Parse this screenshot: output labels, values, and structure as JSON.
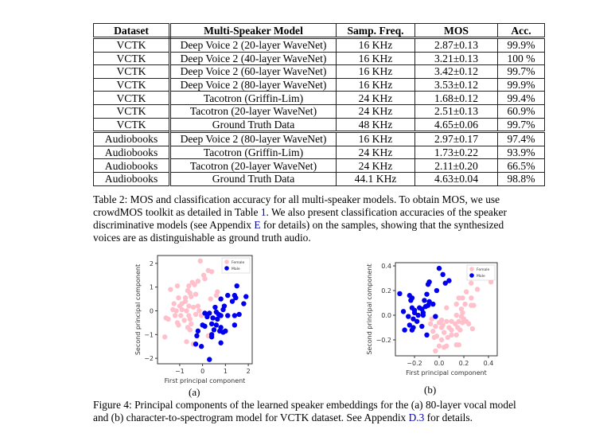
{
  "table": {
    "headers": [
      "Dataset",
      "Multi-Speaker Model",
      "Samp. Freq.",
      "MOS",
      "Acc."
    ],
    "rows": [
      [
        "VCTK",
        "Deep Voice 2 (20-layer WaveNet)",
        "16 KHz",
        "2.87±0.13",
        "99.9%"
      ],
      [
        "VCTK",
        "Deep Voice 2 (40-layer WaveNet)",
        "16 KHz",
        "3.21±0.13",
        "100 %"
      ],
      [
        "VCTK",
        "Deep Voice 2 (60-layer WaveNet)",
        "16 KHz",
        "3.42±0.12",
        "99.7%"
      ],
      [
        "VCTK",
        "Deep Voice 2 (80-layer WaveNet)",
        "16 KHz",
        "3.53±0.12",
        "99.9%"
      ],
      [
        "VCTK",
        "Tacotron (Griffin-Lim)",
        "24 KHz",
        "1.68±0.12",
        "99.4%"
      ],
      [
        "VCTK",
        "Tacotron (20-layer WaveNet)",
        "24 KHz",
        "2.51±0.13",
        "60.9%"
      ],
      [
        "VCTK",
        "Ground Truth Data",
        "48 KHz",
        "4.65±0.06",
        "99.7%"
      ],
      [
        "Audiobooks",
        "Deep Voice 2 (80-layer WaveNet)",
        "16 KHz",
        "2.97±0.17",
        "97.4%"
      ],
      [
        "Audiobooks",
        "Tacotron (Griffin-Lim)",
        "24 KHz",
        "1.73±0.22",
        "93.9%"
      ],
      [
        "Audiobooks",
        "Tacotron (20-layer WaveNet)",
        "24 KHz",
        "2.11±0.20",
        "66.5%"
      ],
      [
        "Audiobooks",
        "Ground Truth Data",
        "44.1 KHz",
        "4.63±0.04",
        "98.8%"
      ]
    ]
  },
  "table_caption": {
    "l1": "Table 2: MOS and classification accuracy for all multi-speaker models. To obtain MOS, we use",
    "l2a": "crowdMOS toolkit as detailed in Table ",
    "l2link": "1",
    "l2b": ". We also present classification accuracies of the speaker",
    "l3a": "discriminative models (see Appendix ",
    "l3link": "E",
    "l3b": " for details) on the samples, showing that the synthesized",
    "l4": "voices are as distinguishable as ground truth audio."
  },
  "figure_caption": {
    "l1": "Figure 4: Principal components of the learned speaker embeddings for the (a) 80-layer vocal model",
    "l2a": "and (b) character-to-spectrogram model for VCTK dataset. See Appendix ",
    "l2link": "D.3",
    "l2b": " for details."
  },
  "colors": {
    "female": "#ffc0cb",
    "male": "#0000ee",
    "link": "#0000cc"
  },
  "chart_data": [
    {
      "type": "scatter",
      "sublabel": "(a)",
      "xlabel": "First principal component",
      "ylabel": "Second principal component",
      "xlim": [
        -1.97,
        2.17
      ],
      "ylim": [
        -2.23,
        2.33
      ],
      "xticks": [
        -1,
        0,
        1,
        2
      ],
      "yticks": [
        -2,
        -1,
        0,
        1,
        2
      ],
      "legend_position": "top-right",
      "series": [
        {
          "name": "Female",
          "color": "#ffc0cb",
          "points": [
            [
              -0.1,
              2.1
            ],
            [
              0.25,
              1.7
            ],
            [
              0.4,
              1.65
            ],
            [
              0.05,
              1.5
            ],
            [
              0.1,
              1.35
            ],
            [
              -0.2,
              1.25
            ],
            [
              -0.45,
              1.2
            ],
            [
              -0.35,
              1.1
            ],
            [
              -0.6,
              1.05
            ],
            [
              -1.1,
              1.05
            ],
            [
              -1.4,
              0.9
            ],
            [
              -0.65,
              0.85
            ],
            [
              -0.55,
              0.75
            ],
            [
              -0.3,
              0.7
            ],
            [
              0.65,
              0.8
            ],
            [
              0.6,
              0.65
            ],
            [
              -1.05,
              0.55
            ],
            [
              -0.75,
              0.55
            ],
            [
              -0.5,
              0.6
            ],
            [
              -0.9,
              0.3
            ],
            [
              -0.75,
              0.4
            ],
            [
              -1.25,
              0.3
            ],
            [
              -1.0,
              0.2
            ],
            [
              -0.6,
              0.2
            ],
            [
              -0.2,
              0.2
            ],
            [
              -0.4,
              0.15
            ],
            [
              -1.3,
              0.05
            ],
            [
              -1.15,
              0.0
            ],
            [
              -0.9,
              0.05
            ],
            [
              -0.7,
              0.0
            ],
            [
              -0.15,
              0.0
            ],
            [
              -1.2,
              -0.2
            ],
            [
              -0.95,
              -0.2
            ],
            [
              -0.6,
              -0.2
            ],
            [
              -0.3,
              -0.15
            ],
            [
              -1.6,
              -0.3
            ],
            [
              -1.5,
              -0.35
            ],
            [
              -0.8,
              -0.4
            ],
            [
              -0.55,
              -0.35
            ],
            [
              -0.05,
              -0.2
            ],
            [
              -1.05,
              -0.6
            ],
            [
              -0.5,
              -0.55
            ],
            [
              -0.65,
              -0.7
            ],
            [
              -0.55,
              -0.8
            ],
            [
              -1.65,
              -1.1
            ],
            [
              -0.7,
              -1.3
            ],
            [
              -0.4,
              -1.4
            ],
            [
              0.25,
              -1.05
            ],
            [
              0.35,
              0.5
            ],
            [
              -1.1,
              -0.5
            ]
          ]
        },
        {
          "name": "Male",
          "color": "#0000ee",
          "points": [
            [
              1.5,
              1.05
            ],
            [
              1.1,
              0.65
            ],
            [
              1.4,
              0.65
            ],
            [
              1.45,
              0.55
            ],
            [
              1.9,
              0.6
            ],
            [
              1.3,
              0.4
            ],
            [
              1.8,
              0.3
            ],
            [
              0.8,
              0.5
            ],
            [
              0.95,
              0.2
            ],
            [
              0.55,
              0.15
            ],
            [
              0.9,
              0.05
            ],
            [
              0.6,
              -0.05
            ],
            [
              0.7,
              -0.15
            ],
            [
              0.3,
              -0.1
            ],
            [
              0.45,
              -0.3
            ],
            [
              0.8,
              -0.2
            ],
            [
              1.1,
              -0.2
            ],
            [
              1.4,
              -0.2
            ],
            [
              1.6,
              -0.15
            ],
            [
              0.1,
              -0.1
            ],
            [
              0.0,
              -0.6
            ],
            [
              0.1,
              -0.65
            ],
            [
              0.4,
              -0.55
            ],
            [
              0.6,
              -0.6
            ],
            [
              0.75,
              -0.85
            ],
            [
              0.9,
              -0.9
            ],
            [
              1.0,
              -0.85
            ],
            [
              1.4,
              -0.6
            ],
            [
              0.8,
              -0.7
            ],
            [
              0.2,
              -0.25
            ],
            [
              -0.2,
              -0.85
            ],
            [
              -0.25,
              -1.05
            ],
            [
              0.4,
              -1.0
            ],
            [
              0.4,
              -1.1
            ],
            [
              0.8,
              -1.35
            ],
            [
              -0.3,
              -1.4
            ],
            [
              -0.05,
              -1.5
            ],
            [
              0.3,
              -2.05
            ],
            [
              0.5,
              -0.8
            ],
            [
              0.65,
              -0.35
            ]
          ]
        }
      ]
    },
    {
      "type": "scatter",
      "sublabel": "(b)",
      "xlabel": "First principal component",
      "ylabel": "Second principal component",
      "xlim": [
        -0.355,
        0.471
      ],
      "ylim": [
        -0.329,
        0.426
      ],
      "xticks": [
        -0.2,
        0.0,
        0.2,
        0.4
      ],
      "yticks": [
        -0.2,
        0.0,
        0.2,
        0.4
      ],
      "legend_position": "top-right",
      "series": [
        {
          "name": "Female",
          "color": "#ffc0cb",
          "points": [
            [
              0.42,
              0.27
            ],
            [
              0.26,
              0.26
            ],
            [
              0.31,
              0.21
            ],
            [
              0.22,
              0.19
            ],
            [
              0.16,
              0.14
            ],
            [
              0.19,
              0.14
            ],
            [
              0.26,
              0.14
            ],
            [
              0.14,
              0.09
            ],
            [
              0.21,
              0.09
            ],
            [
              0.26,
              0.08
            ],
            [
              0.28,
              0.08
            ],
            [
              0.06,
              0.06
            ],
            [
              0.18,
              0.05
            ],
            [
              0.19,
              0.02
            ],
            [
              0.14,
              0.0
            ],
            [
              0.18,
              -0.01
            ],
            [
              0.2,
              -0.03
            ],
            [
              -0.06,
              -0.03
            ],
            [
              0.02,
              -0.04
            ],
            [
              0.06,
              -0.05
            ],
            [
              0.1,
              -0.05
            ],
            [
              0.16,
              -0.05
            ],
            [
              0.19,
              -0.06
            ],
            [
              0.22,
              -0.05
            ],
            [
              0.24,
              -0.07
            ],
            [
              -0.07,
              -0.07
            ],
            [
              0.0,
              -0.06
            ],
            [
              0.03,
              -0.08
            ],
            [
              0.13,
              -0.07
            ],
            [
              -0.03,
              -0.09
            ],
            [
              0.02,
              -0.1
            ],
            [
              0.08,
              -0.1
            ],
            [
              0.15,
              -0.1
            ],
            [
              0.27,
              -0.11
            ],
            [
              0.17,
              -0.12
            ],
            [
              -0.05,
              -0.13
            ],
            [
              0.04,
              -0.14
            ],
            [
              0.1,
              -0.16
            ],
            [
              0.14,
              -0.16
            ],
            [
              -0.02,
              -0.17
            ],
            [
              0.07,
              -0.18
            ],
            [
              -0.04,
              -0.18
            ],
            [
              0.02,
              -0.2
            ],
            [
              0.14,
              -0.24
            ],
            [
              0.16,
              -0.24
            ],
            [
              0.0,
              -0.25
            ],
            [
              0.04,
              -0.26
            ],
            [
              0.06,
              -0.25
            ],
            [
              -0.03,
              -0.29
            ],
            [
              0.1,
              -0.12
            ]
          ]
        },
        {
          "name": "Male",
          "color": "#0000ee",
          "points": [
            [
              0.0,
              0.38
            ],
            [
              0.03,
              0.33
            ],
            [
              -0.08,
              0.27
            ],
            [
              -0.09,
              0.25
            ],
            [
              0.08,
              0.28
            ],
            [
              0.05,
              0.26
            ],
            [
              -0.32,
              0.175
            ],
            [
              -0.24,
              0.16
            ],
            [
              -0.22,
              0.14
            ],
            [
              -0.1,
              0.17
            ],
            [
              -0.02,
              0.2
            ],
            [
              -0.23,
              0.12
            ],
            [
              -0.12,
              0.12
            ],
            [
              -0.08,
              0.11
            ],
            [
              -0.05,
              0.09
            ],
            [
              -0.29,
              0.03
            ],
            [
              -0.22,
              0.06
            ],
            [
              -0.2,
              0.04
            ],
            [
              -0.16,
              0.06
            ],
            [
              -0.14,
              0.05
            ],
            [
              -0.11,
              0.07
            ],
            [
              -0.09,
              0.08
            ],
            [
              -0.2,
              0.02
            ],
            [
              -0.17,
              0.0
            ],
            [
              -0.13,
              0.0
            ],
            [
              -0.25,
              -0.01
            ],
            [
              -0.21,
              -0.03
            ],
            [
              -0.03,
              -0.01
            ],
            [
              -0.18,
              -0.05
            ],
            [
              -0.24,
              -0.08
            ],
            [
              -0.21,
              -0.1
            ],
            [
              -0.28,
              -0.12
            ],
            [
              -0.22,
              -0.12
            ],
            [
              -0.14,
              -0.09
            ],
            [
              -0.1,
              -0.16
            ],
            [
              -0.13,
              0.02
            ]
          ]
        }
      ]
    }
  ]
}
